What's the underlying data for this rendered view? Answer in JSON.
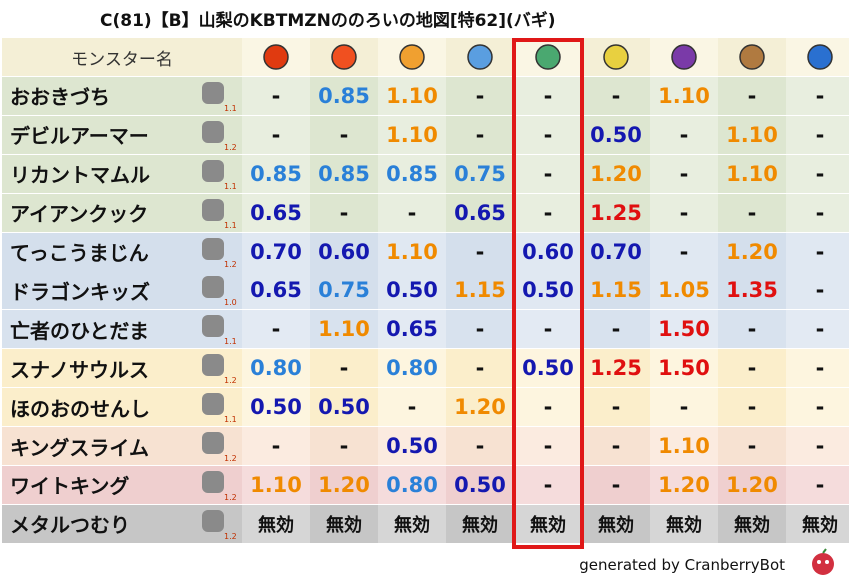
{
  "title": "C(81)【B】山梨のKBTMZNののろいの地図[特62](バギ)",
  "header": {
    "name_label": "モンスター名"
  },
  "rows": [
    {
      "name": "おおきづち",
      "level": "1.1",
      "cells": [
        "-",
        "0.85",
        "1.10",
        "-",
        "-",
        "-",
        "1.10",
        "-",
        "-"
      ]
    },
    {
      "name": "デビルアーマー",
      "level": "1.2",
      "cells": [
        "-",
        "-",
        "1.10",
        "-",
        "-",
        "0.50",
        "-",
        "1.10",
        "-"
      ]
    },
    {
      "name": "リカントマムル",
      "level": "1.1",
      "cells": [
        "0.85",
        "0.85",
        "0.85",
        "0.75",
        "-",
        "1.20",
        "-",
        "1.10",
        "-"
      ]
    },
    {
      "name": "アイアンクック",
      "level": "1.1",
      "cells": [
        "0.65",
        "-",
        "-",
        "0.65",
        "-",
        "1.25",
        "-",
        "-",
        "-"
      ]
    },
    {
      "name": "てっこうまじん",
      "level": "1.2",
      "cells": [
        "0.70",
        "0.60",
        "1.10",
        "-",
        "0.60",
        "0.70",
        "-",
        "1.20",
        "-"
      ]
    },
    {
      "name": "ドラゴンキッズ",
      "level": "1.0",
      "cells": [
        "0.65",
        "0.75",
        "0.50",
        "1.15",
        "0.50",
        "1.15",
        "1.05",
        "1.35",
        "-"
      ]
    },
    {
      "name": "亡者のひとだま",
      "level": "1.1",
      "cells": [
        "-",
        "1.10",
        "0.65",
        "-",
        "-",
        "-",
        "1.50",
        "-",
        "-"
      ]
    },
    {
      "name": "スナノサウルス",
      "level": "1.2",
      "cells": [
        "0.80",
        "-",
        "0.80",
        "-",
        "0.50",
        "1.25",
        "1.50",
        "-",
        "-"
      ]
    },
    {
      "name": "ほのおのせんし",
      "level": "1.1",
      "cells": [
        "0.50",
        "0.50",
        "-",
        "1.20",
        "-",
        "-",
        "-",
        "-",
        "-"
      ]
    },
    {
      "name": "キングスライム",
      "level": "1.2",
      "cells": [
        "-",
        "-",
        "0.50",
        "-",
        "-",
        "-",
        "1.10",
        "-",
        "-"
      ]
    },
    {
      "name": "ワイトキング",
      "level": "1.2",
      "cells": [
        "1.10",
        "1.20",
        "0.80",
        "0.50",
        "-",
        "-",
        "1.20",
        "1.20",
        "-"
      ]
    },
    {
      "name": "メタルつむり",
      "level": "1.2",
      "cells": [
        "無効",
        "無効",
        "無効",
        "無効",
        "無効",
        "無効",
        "無効",
        "無効",
        "無効"
      ]
    }
  ],
  "footer": "generated by CranberryBot"
}
